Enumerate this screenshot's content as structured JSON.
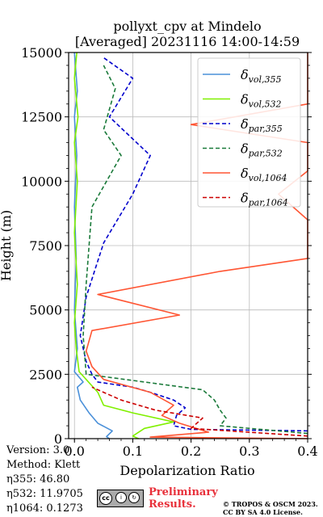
{
  "title_line1": "pollyxt_cpv at Mindelo",
  "title_line2": "[Averaged] 20231116 14:00-14:59",
  "info": {
    "version": "Version: 3.0",
    "method": "Method: Klett",
    "eta355": "η355:  46.80",
    "eta532": "η532: 11.9705",
    "eta1064": "η1064: 0.1273"
  },
  "badge": {
    "cc": "cc",
    "by": "BY",
    "sa": "SA",
    "label": "BY  SA"
  },
  "preliminary": {
    "line1": "Preliminary",
    "line2": "Results."
  },
  "copyright": {
    "line1": "© TROPOS & OSCM 2023.",
    "line2": "CC BY SA 4.0 License."
  },
  "chart_data": {
    "type": "line",
    "title": "pollyxt_cpv at Mindelo [Averaged] 20231116 14:00-14:59",
    "xlabel": "Depolarization Ratio",
    "ylabel": "Height (m)",
    "xlim": [
      -0.01,
      0.4
    ],
    "ylim": [
      0,
      15000
    ],
    "xticks": [
      0.0,
      0.1,
      0.2,
      0.3,
      0.4
    ],
    "xtick_labels": [
      "0.0",
      "0.1",
      "0.2",
      "0.3",
      "0.4"
    ],
    "yticks": [
      0,
      2500,
      5000,
      7500,
      10000,
      12500,
      15000
    ],
    "ytick_labels": [
      "0",
      "2500",
      "5000",
      "7500",
      "10000",
      "12500",
      "15000"
    ],
    "grid": true,
    "legend_position": "top-right",
    "legend": [
      {
        "base": "δ",
        "sub": "vol,355",
        "color": "#4a90d9",
        "dash": "solid"
      },
      {
        "base": "δ",
        "sub": "vol,532",
        "color": "#80f000",
        "dash": "solid"
      },
      {
        "base": "δ",
        "sub": "par,355",
        "color": "#0000cc",
        "dash": "dashed"
      },
      {
        "base": "δ",
        "sub": "par,532",
        "color": "#1a7a3a",
        "dash": "dashed"
      },
      {
        "base": "δ",
        "sub": "vol,1064",
        "color": "#ff5533",
        "dash": "solid"
      },
      {
        "base": "δ",
        "sub": "par,1064",
        "color": "#cc0000",
        "dash": "dashed"
      }
    ],
    "series": [
      {
        "name": "δvol,355",
        "color": "#4a90d9",
        "dash": "solid",
        "points": [
          [
            0.06,
            0
          ],
          [
            0.055,
            80
          ],
          [
            0.065,
            300
          ],
          [
            0.04,
            600
          ],
          [
            0.025,
            1000
          ],
          [
            0.01,
            1500
          ],
          [
            0.005,
            2000
          ],
          [
            0.015,
            2200
          ],
          [
            0.0,
            2600
          ],
          [
            0.005,
            3500
          ],
          [
            0.0,
            5000
          ],
          [
            0.003,
            7000
          ],
          [
            0.0,
            9000
          ],
          [
            0.004,
            11000
          ],
          [
            0.0,
            12500
          ],
          [
            0.005,
            13500
          ],
          [
            0.0,
            15000
          ]
        ]
      },
      {
        "name": "δvol,532",
        "color": "#80f000",
        "dash": "solid",
        "points": [
          [
            0.11,
            0
          ],
          [
            0.1,
            100
          ],
          [
            0.12,
            400
          ],
          [
            0.17,
            650
          ],
          [
            0.1,
            1000
          ],
          [
            0.05,
            1300
          ],
          [
            0.04,
            1800
          ],
          [
            0.02,
            2300
          ],
          [
            0.008,
            2600
          ],
          [
            0.003,
            3500
          ],
          [
            0.0,
            4500
          ],
          [
            0.005,
            6000
          ],
          [
            0.0,
            8000
          ],
          [
            0.005,
            10000
          ],
          [
            0.0,
            11500
          ],
          [
            0.006,
            12500
          ],
          [
            0.0,
            14000
          ],
          [
            0.004,
            15000
          ]
        ]
      },
      {
        "name": "δpar,355",
        "color": "#0000cc",
        "dash": "dashed",
        "points": [
          [
            0.4,
            300
          ],
          [
            0.2,
            360
          ],
          [
            0.17,
            500
          ],
          [
            0.175,
            900
          ],
          [
            0.19,
            1200
          ],
          [
            0.17,
            1500
          ],
          [
            0.13,
            1800
          ],
          [
            0.1,
            2000
          ],
          [
            0.04,
            2200
          ],
          [
            0.03,
            2500
          ],
          [
            0.02,
            3000
          ],
          [
            0.01,
            4000
          ],
          [
            0.02,
            5500
          ],
          [
            0.05,
            7600
          ],
          [
            0.1,
            9500
          ],
          [
            0.13,
            11000
          ],
          [
            0.06,
            12500
          ],
          [
            0.1,
            14000
          ],
          [
            0.05,
            14800
          ]
        ]
      },
      {
        "name": "δpar,532",
        "color": "#1a7a3a",
        "dash": "dashed",
        "points": [
          [
            0.4,
            200
          ],
          [
            0.25,
            500
          ],
          [
            0.26,
            800
          ],
          [
            0.25,
            1100
          ],
          [
            0.24,
            1500
          ],
          [
            0.22,
            1900
          ],
          [
            0.02,
            2500
          ],
          [
            0.015,
            4000
          ],
          [
            0.02,
            6000
          ],
          [
            0.03,
            9000
          ],
          [
            0.08,
            11000
          ],
          [
            0.05,
            12000
          ],
          [
            0.07,
            13600
          ],
          [
            0.05,
            14500
          ]
        ]
      },
      {
        "name": "δvol,1064",
        "color": "#ff5533",
        "dash": "solid",
        "points": [
          [
            0.4,
            0
          ],
          [
            0.13,
            60
          ],
          [
            0.23,
            250
          ],
          [
            0.18,
            600
          ],
          [
            0.15,
            900
          ],
          [
            0.17,
            1300
          ],
          [
            0.13,
            1800
          ],
          [
            0.05,
            2300
          ],
          [
            0.03,
            2800
          ],
          [
            0.02,
            3400
          ],
          [
            0.03,
            4200
          ],
          [
            0.18,
            4800
          ],
          [
            0.04,
            5600
          ],
          [
            0.25,
            6500
          ],
          [
            0.4,
            7000
          ],
          [
            0.4,
            8500
          ],
          [
            0.35,
            9500
          ],
          [
            0.4,
            10400
          ],
          [
            0.4,
            11500
          ],
          [
            0.2,
            12200
          ],
          [
            0.4,
            13000
          ],
          [
            0.4,
            14000
          ],
          [
            0.4,
            15000
          ]
        ]
      },
      {
        "name": "δpar,1064",
        "color": "#cc0000",
        "dash": "dashed",
        "points": [
          [
            0.4,
            100
          ],
          [
            0.2,
            400
          ],
          [
            0.22,
            800
          ],
          [
            0.14,
            1100
          ],
          [
            0.08,
            1500
          ],
          [
            0.03,
            2000
          ]
        ]
      }
    ]
  }
}
